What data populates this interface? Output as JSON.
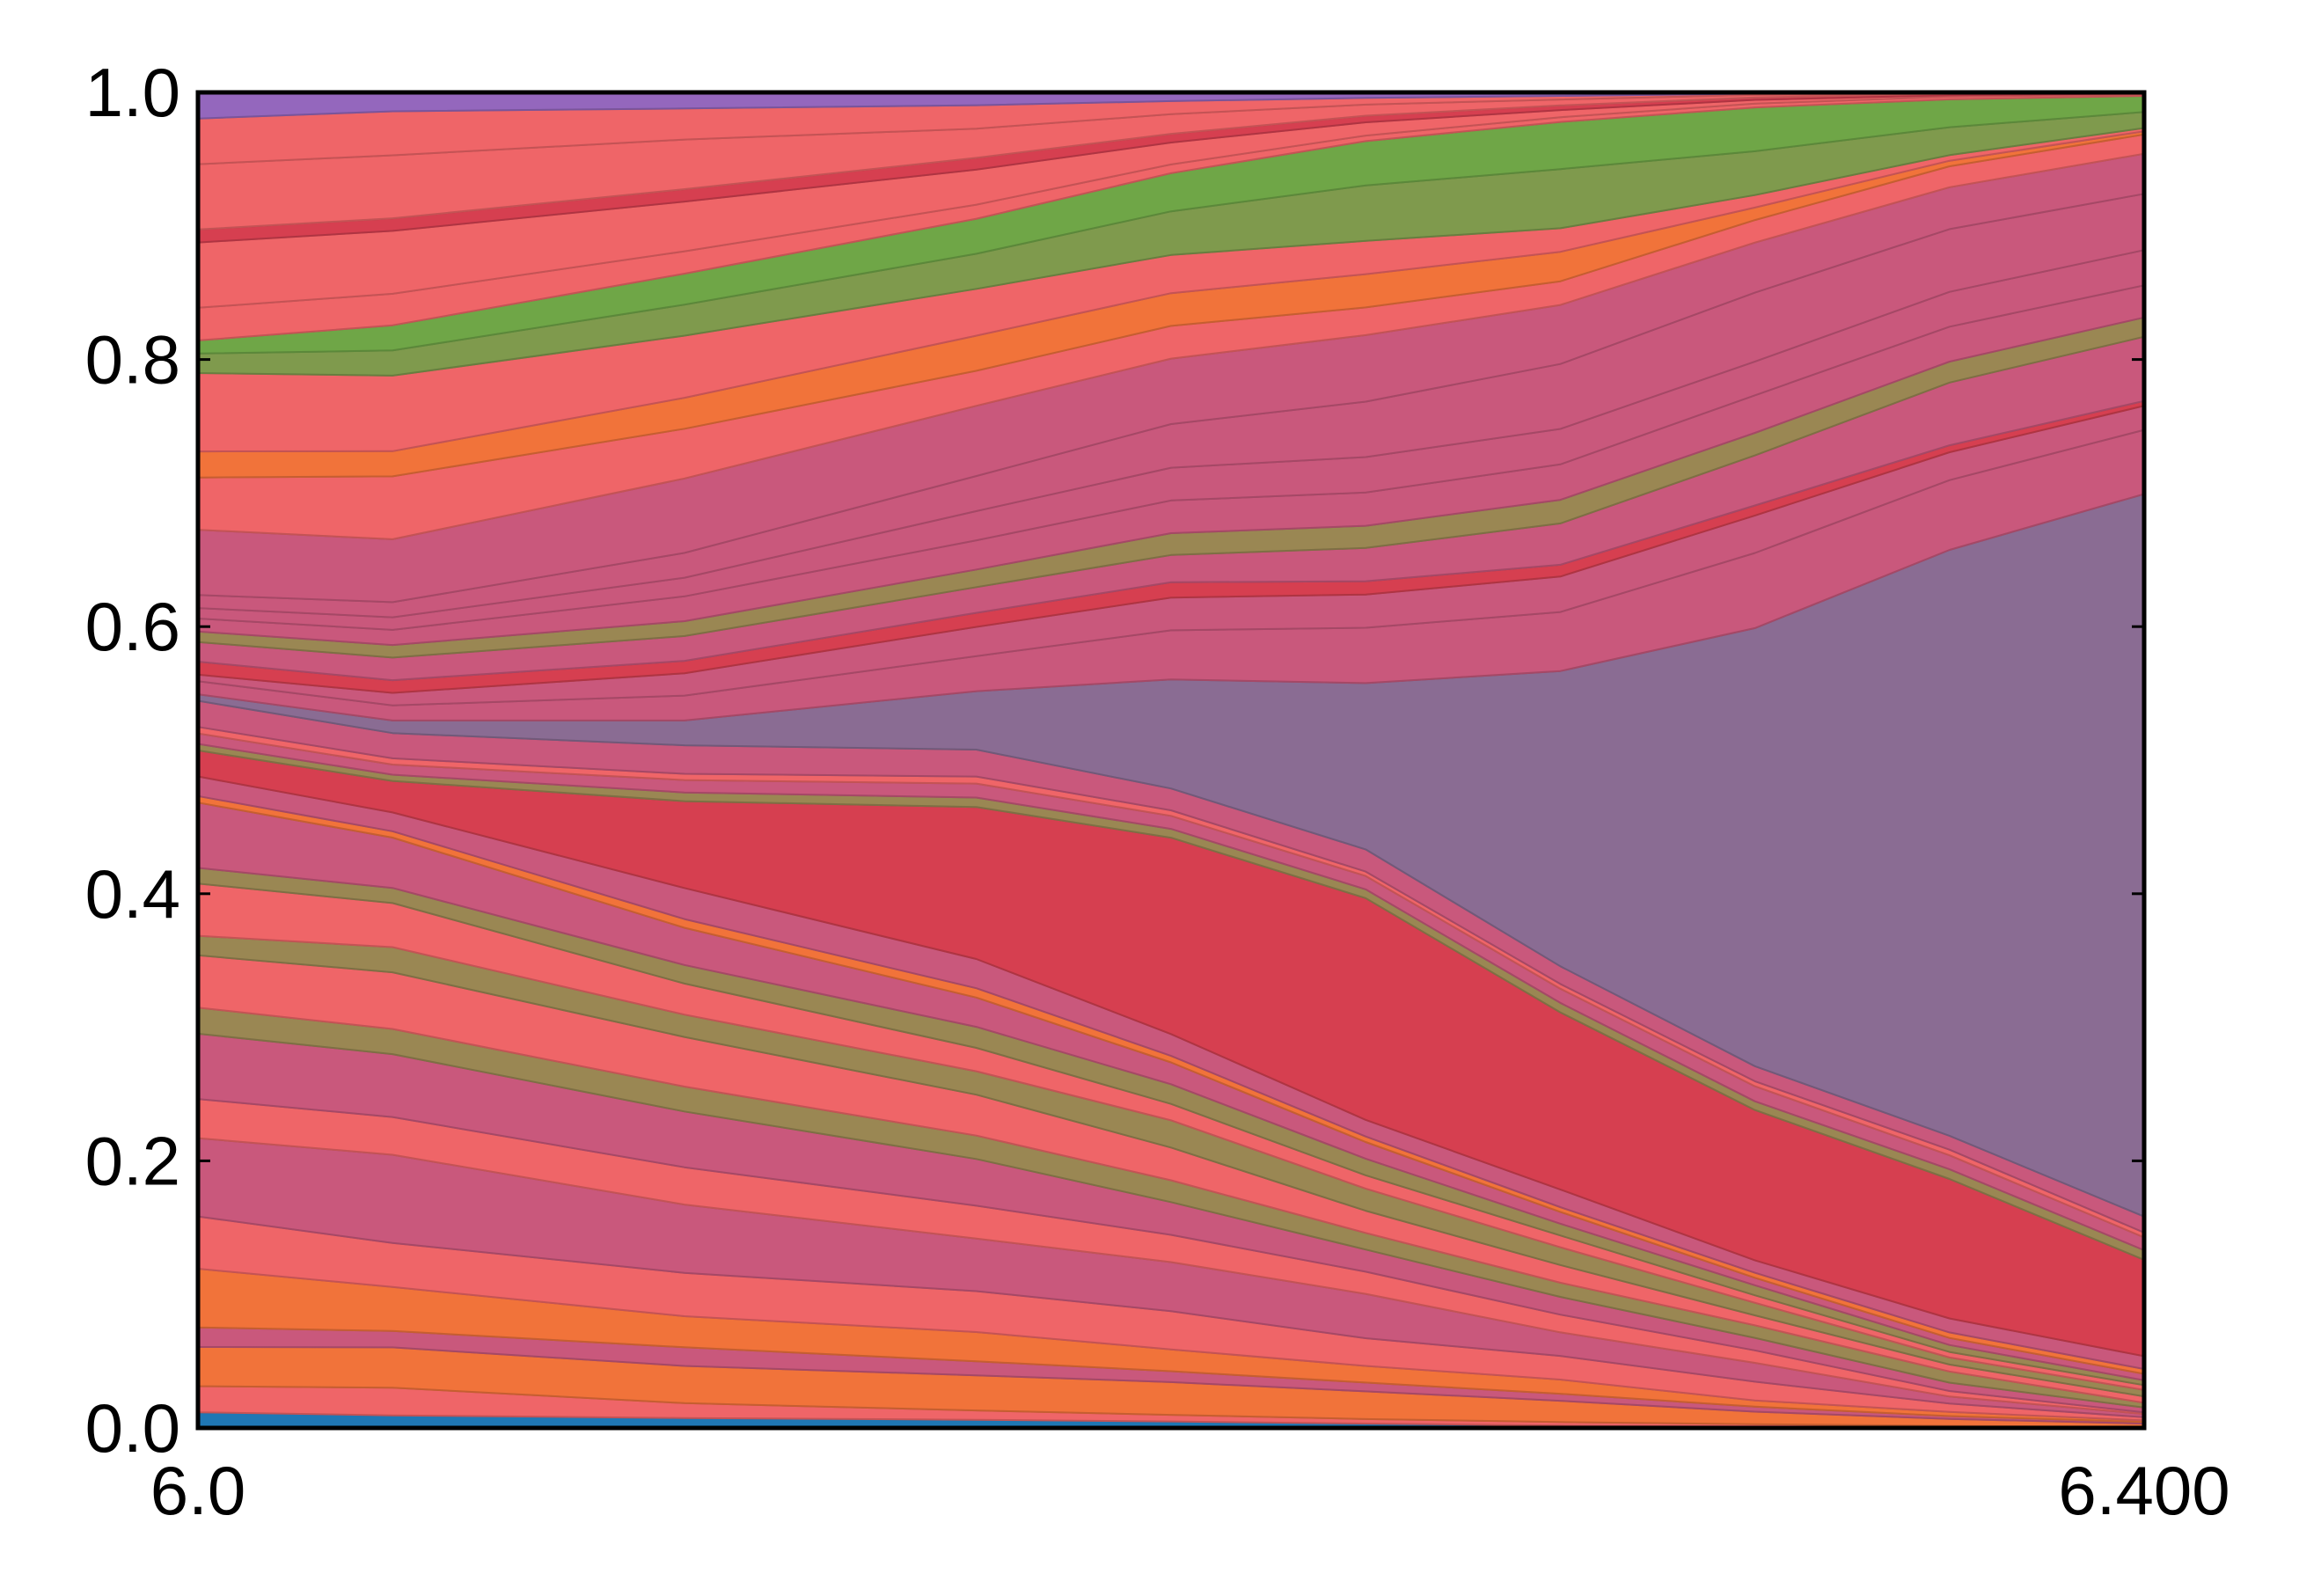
{
  "chart_data": {
    "type": "area",
    "stacked": true,
    "normalized": true,
    "title": "",
    "xlabel": "",
    "ylabel": "",
    "x": [
      6.0,
      6.04,
      6.1,
      6.16,
      6.2,
      6.24,
      6.28,
      6.32,
      6.36,
      6.4
    ],
    "xlim": [
      6.0,
      6.4
    ],
    "ylim": [
      0.0,
      1.0
    ],
    "x_tick_labels": [
      {
        "value": 6.0,
        "label": "6.0"
      },
      {
        "value": 6.4,
        "label": "6.400"
      }
    ],
    "y_tick_labels": [
      {
        "value": 0.0,
        "label": "0.0"
      },
      {
        "value": 0.2,
        "label": "0.2"
      },
      {
        "value": 0.4,
        "label": "0.4"
      },
      {
        "value": 0.6,
        "label": "0.6"
      },
      {
        "value": 0.8,
        "label": "0.8"
      },
      {
        "value": 1.0,
        "label": "1.0"
      }
    ],
    "grid": false,
    "legend": "none",
    "series": [
      {
        "color": "#1f77b4",
        "values": [
          0.012,
          0.01,
          0.008,
          0.007,
          0.006,
          0.004,
          0.002,
          0.001,
          0.0005,
          0.0002
        ]
      },
      {
        "color": "#ef6568",
        "values": [
          0.02,
          0.022,
          0.012,
          0.008,
          0.006,
          0.004,
          0.003,
          0.002,
          0.001,
          0.0005
        ]
      },
      {
        "color": "#f1733a",
        "values": [
          0.03,
          0.032,
          0.03,
          0.03,
          0.03,
          0.025,
          0.018,
          0.01,
          0.005,
          0.002
        ]
      },
      {
        "color": "#c9587c",
        "values": [
          0.015,
          0.013,
          0.015,
          0.012,
          0.01,
          0.008,
          0.006,
          0.004,
          0.002,
          0.001
        ]
      },
      {
        "color": "#f1733a",
        "values": [
          0.045,
          0.035,
          0.025,
          0.025,
          0.02,
          0.015,
          0.012,
          0.005,
          0.003,
          0.001
        ]
      },
      {
        "color": "#ef6568",
        "values": [
          0.04,
          0.035,
          0.035,
          0.035,
          0.035,
          0.025,
          0.02,
          0.015,
          0.006,
          0.002
        ]
      },
      {
        "color": "#c9587c",
        "values": [
          0.06,
          0.07,
          0.055,
          0.045,
          0.045,
          0.04,
          0.02,
          0.015,
          0.005,
          0.002
        ]
      },
      {
        "color": "#ef6568",
        "values": [
          0.03,
          0.03,
          0.03,
          0.028,
          0.025,
          0.02,
          0.015,
          0.01,
          0.004,
          0.001
        ]
      },
      {
        "color": "#c9587c",
        "values": [
          0.05,
          0.05,
          0.045,
          0.04,
          0.03,
          0.02,
          0.015,
          0.01,
          0.006,
          0.003
        ]
      },
      {
        "color": "#9a8753",
        "values": [
          0.02,
          0.02,
          0.02,
          0.02,
          0.02,
          0.015,
          0.012,
          0.01,
          0.008,
          0.003
        ]
      },
      {
        "color": "#ef6568",
        "values": [
          0.04,
          0.045,
          0.04,
          0.035,
          0.03,
          0.02,
          0.015,
          0.008,
          0.005,
          0.004
        ]
      },
      {
        "color": "#9a8753",
        "values": [
          0.015,
          0.02,
          0.018,
          0.02,
          0.025,
          0.02,
          0.015,
          0.01,
          0.005,
          0.004
        ]
      },
      {
        "color": "#ef6568",
        "values": [
          0.04,
          0.035,
          0.025,
          0.02,
          0.015,
          0.012,
          0.01,
          0.006,
          0.004,
          0.003
        ]
      },
      {
        "color": "#9a8753",
        "values": [
          0.012,
          0.012,
          0.015,
          0.018,
          0.018,
          0.015,
          0.01,
          0.008,
          0.005,
          0.003
        ]
      },
      {
        "color": "#c9587c",
        "values": [
          0.05,
          0.04,
          0.03,
          0.025,
          0.02,
          0.015,
          0.01,
          0.006,
          0.005,
          0.004
        ]
      },
      {
        "color": "#f1733a",
        "values": [
          0.005,
          0.005,
          0.007,
          0.008,
          0.006,
          0.005,
          0.004,
          0.004,
          0.004,
          0.003
        ]
      },
      {
        "color": "#c9587c",
        "values": [
          0.015,
          0.015,
          0.025,
          0.025,
          0.02,
          0.015,
          0.015,
          0.01,
          0.01,
          0.008
        ]
      },
      {
        "color": "#d63f50",
        "values": [
          0.02,
          0.025,
          0.07,
          0.13,
          0.18,
          0.2,
          0.15,
          0.12,
          0.1,
          0.06
        ]
      },
      {
        "color": "#9a8753",
        "values": [
          0.005,
          0.005,
          0.007,
          0.008,
          0.008,
          0.008,
          0.008,
          0.007,
          0.007,
          0.006
        ]
      },
      {
        "color": "#c9587c",
        "values": [
          0.008,
          0.008,
          0.01,
          0.012,
          0.012,
          0.012,
          0.012,
          0.012,
          0.01,
          0.008
        ]
      },
      {
        "color": "#ef6568",
        "values": [
          0.005,
          0.005,
          0.005,
          0.006,
          0.005,
          0.004,
          0.004,
          0.004,
          0.004,
          0.003
        ]
      },
      {
        "color": "#c9587c",
        "values": [
          0.02,
          0.02,
          0.023,
          0.023,
          0.02,
          0.02,
          0.015,
          0.012,
          0.01,
          0.01
        ]
      },
      {
        "color": "#8a6c93",
        "values": [
          0.005,
          0.01,
          0.02,
          0.05,
          0.1,
          0.15,
          0.25,
          0.35,
          0.42,
          0.45
        ]
      },
      {
        "color": "#c9587c",
        "values": [
          0.01,
          0.012,
          0.02,
          0.03,
          0.045,
          0.05,
          0.05,
          0.06,
          0.05,
          0.04
        ]
      },
      {
        "color": "#c9587c",
        "values": [
          0.005,
          0.01,
          0.018,
          0.025,
          0.03,
          0.03,
          0.03,
          0.03,
          0.02,
          0.015
        ]
      },
      {
        "color": "#d63f50",
        "values": [
          0.01,
          0.01,
          0.01,
          0.012,
          0.014,
          0.012,
          0.01,
          0.008,
          0.005,
          0.003
        ]
      },
      {
        "color": "#c9587c",
        "values": [
          0.015,
          0.018,
          0.02,
          0.022,
          0.025,
          0.03,
          0.035,
          0.04,
          0.045,
          0.04
        ]
      },
      {
        "color": "#9a8753",
        "values": [
          0.008,
          0.01,
          0.012,
          0.015,
          0.02,
          0.02,
          0.02,
          0.018,
          0.015,
          0.012
        ]
      },
      {
        "color": "#c9587c",
        "values": [
          0.01,
          0.012,
          0.02,
          0.025,
          0.03,
          0.03,
          0.03,
          0.03,
          0.025,
          0.02
        ]
      },
      {
        "color": "#c9587c",
        "values": [
          0.008,
          0.01,
          0.015,
          0.025,
          0.03,
          0.032,
          0.03,
          0.027,
          0.025,
          0.022
        ]
      },
      {
        "color": "#c9587c",
        "values": [
          0.01,
          0.012,
          0.02,
          0.03,
          0.04,
          0.05,
          0.055,
          0.055,
          0.045,
          0.035
        ]
      },
      {
        "color": "#c9587c",
        "values": [
          0.05,
          0.05,
          0.06,
          0.06,
          0.06,
          0.06,
          0.05,
          0.04,
          0.03,
          0.025
        ]
      },
      {
        "color": "#ef6568",
        "values": [
          0.04,
          0.05,
          0.04,
          0.03,
          0.03,
          0.025,
          0.02,
          0.018,
          0.015,
          0.012
        ]
      },
      {
        "color": "#f1733a",
        "values": [
          0.02,
          0.02,
          0.025,
          0.03,
          0.03,
          0.03,
          0.025,
          0.01,
          0.004,
          0.002
        ]
      },
      {
        "color": "#ef6568",
        "values": [
          0.06,
          0.06,
          0.05,
          0.04,
          0.035,
          0.03,
          0.02,
          0.01,
          0.004,
          0.002
        ]
      },
      {
        "color": "#7f9a4d",
        "values": [
          0.015,
          0.02,
          0.025,
          0.03,
          0.04,
          0.05,
          0.05,
          0.035,
          0.02,
          0.01
        ]
      },
      {
        "color": "#6fa647",
        "values": [
          0.01,
          0.02,
          0.025,
          0.03,
          0.035,
          0.04,
          0.04,
          0.035,
          0.02,
          0.01
        ]
      },
      {
        "color": "#ef6568",
        "values": [
          0.025,
          0.025,
          0.018,
          0.012,
          0.008,
          0.005,
          0.004,
          0.003,
          0.002,
          0.001
        ]
      },
      {
        "color": "#ef6568",
        "values": [
          0.05,
          0.05,
          0.04,
          0.03,
          0.02,
          0.012,
          0.006,
          0.003,
          0.001,
          0.0005
        ]
      },
      {
        "color": "#d63f50",
        "values": [
          0.01,
          0.01,
          0.01,
          0.01,
          0.008,
          0.006,
          0.004,
          0.002,
          0.001,
          0.0003
        ]
      },
      {
        "color": "#ef6568",
        "values": [
          0.05,
          0.05,
          0.04,
          0.025,
          0.018,
          0.01,
          0.005,
          0.002,
          0.0005,
          0.0002
        ]
      },
      {
        "color": "#ef6568",
        "values": [
          0.035,
          0.035,
          0.025,
          0.02,
          0.012,
          0.006,
          0.003,
          0.001,
          0.0003,
          0.0001
        ]
      },
      {
        "color": "#9467bd",
        "values": [
          0.02,
          0.015,
          0.013,
          0.011,
          0.008,
          0.005,
          0.003,
          0.001,
          0.0002,
          0.0001
        ]
      }
    ]
  }
}
